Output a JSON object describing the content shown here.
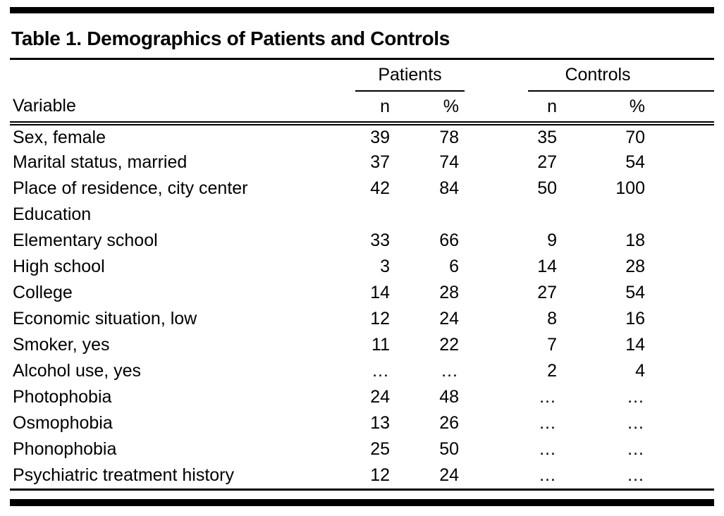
{
  "table": {
    "title": "Table 1. Demographics of Patients and Controls",
    "variable_header": "Variable",
    "col_groups": [
      {
        "label": "Patients",
        "sub": [
          "n",
          "%"
        ]
      },
      {
        "label": "Controls",
        "sub": [
          "n",
          "%"
        ]
      }
    ],
    "rows": [
      {
        "variable": "Sex, female",
        "values": [
          "39",
          "78",
          "35",
          "70"
        ]
      },
      {
        "variable": "Marital status, married",
        "values": [
          "37",
          "74",
          "27",
          "54"
        ]
      },
      {
        "variable": "Place of residence, city center",
        "values": [
          "42",
          "84",
          "50",
          "100"
        ]
      },
      {
        "variable": "Education",
        "values": [
          "",
          "",
          "",
          ""
        ]
      },
      {
        "variable": "Elementary school",
        "values": [
          "33",
          "66",
          "9",
          "18"
        ]
      },
      {
        "variable": "High school",
        "values": [
          "3",
          "6",
          "14",
          "28"
        ]
      },
      {
        "variable": "College",
        "values": [
          "14",
          "28",
          "27",
          "54"
        ]
      },
      {
        "variable": "Economic situation, low",
        "values": [
          "12",
          "24",
          "8",
          "16"
        ]
      },
      {
        "variable": "Smoker, yes",
        "values": [
          "11",
          "22",
          "7",
          "14"
        ]
      },
      {
        "variable": "Alcohol use, yes",
        "values": [
          "…",
          "…",
          "2",
          "4"
        ]
      },
      {
        "variable": "Photophobia",
        "values": [
          "24",
          "48",
          "…",
          "…"
        ]
      },
      {
        "variable": "Osmophobia",
        "values": [
          "13",
          "26",
          "…",
          "…"
        ]
      },
      {
        "variable": "Phonophobia",
        "values": [
          "25",
          "50",
          "…",
          "…"
        ]
      },
      {
        "variable": "Psychiatric treatment history",
        "values": [
          "12",
          "24",
          "…",
          "…"
        ]
      }
    ]
  }
}
